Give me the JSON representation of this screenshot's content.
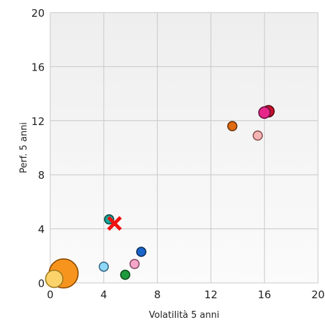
{
  "chart_data": {
    "type": "scatter",
    "xlabel": "Volatilità 5 anni",
    "ylabel": "Perf. 5 anni",
    "xlim": [
      0,
      20
    ],
    "ylim": [
      0,
      20
    ],
    "xticks": [
      "0",
      "4",
      "8",
      "12",
      "16",
      "20"
    ],
    "yticks": [
      "0",
      "4",
      "8",
      "12",
      "16",
      "20"
    ],
    "grid": true,
    "legend": "none",
    "points": [
      {
        "x": 1.0,
        "y": 0.7,
        "size": 3.2,
        "color": "#f7941d",
        "stroke": "#8a4a00"
      },
      {
        "x": 0.3,
        "y": 0.3,
        "size": 1.9,
        "color": "#fcd36a",
        "stroke": "#a07a20"
      },
      {
        "x": 4.0,
        "y": 1.2,
        "size": 1.0,
        "color": "#8ed8f8",
        "stroke": "#3a6a88"
      },
      {
        "x": 5.6,
        "y": 0.6,
        "size": 1.0,
        "color": "#1f9a3c",
        "stroke": "#0d4a1c"
      },
      {
        "x": 6.3,
        "y": 1.4,
        "size": 1.0,
        "color": "#f7a8c8",
        "stroke": "#8a4a68"
      },
      {
        "x": 6.8,
        "y": 2.3,
        "size": 1.0,
        "color": "#1a66c8",
        "stroke": "#0a2a5a"
      },
      {
        "x": 4.4,
        "y": 4.7,
        "size": 1.0,
        "color": "#15a89a",
        "stroke": "#0a4a44"
      },
      {
        "x": 13.6,
        "y": 11.6,
        "size": 1.0,
        "color": "#e06b10",
        "stroke": "#6a3008"
      },
      {
        "x": 15.5,
        "y": 10.9,
        "size": 1.0,
        "color": "#f5b5b5",
        "stroke": "#8a5050"
      },
      {
        "x": 16.3,
        "y": 12.7,
        "size": 1.25,
        "color": "#c8102e",
        "stroke": "#5a0814"
      },
      {
        "x": 16.0,
        "y": 12.6,
        "size": 1.25,
        "color": "#e8268a",
        "stroke": "#6a1040"
      }
    ],
    "marker": {
      "x": 4.8,
      "y": 4.4,
      "shape": "x",
      "color": "#ee1111"
    }
  }
}
